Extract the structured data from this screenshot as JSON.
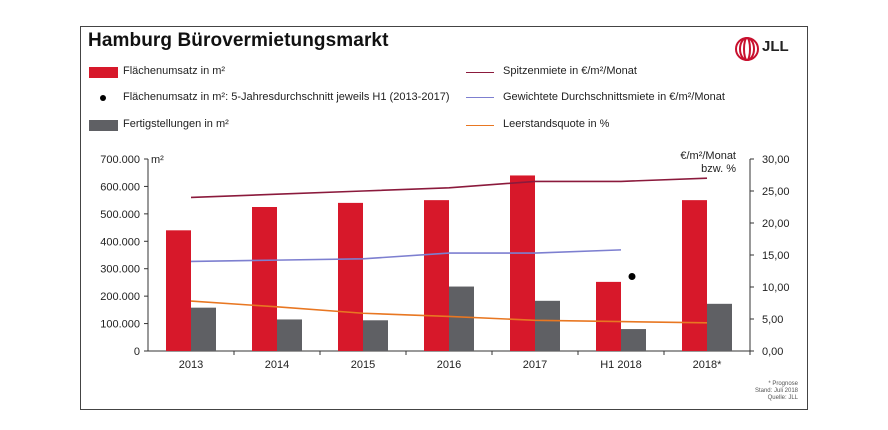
{
  "title": "Hamburg Bürovermietungsmarkt",
  "logo": {
    "text": "JLL",
    "color": "#c8102e"
  },
  "legend": {
    "bar_turnover": "Flächenumsatz in m²",
    "dot_avg": "Flächenumsatz in m²: 5-Jahresdurchschnitt jeweils H1 (2013-2017)",
    "bar_completions": "Fertigstellungen in m²",
    "line_prime": "Spitzenmiete in €/m²/Monat",
    "line_weighted": "Gewichtete Durchschnittsmiete in €/m²/Monat",
    "line_vacancy": "Leerstandsquote in %"
  },
  "axis": {
    "left_unit": "m²",
    "right_unit_line1": "€/m²/Monat",
    "right_unit_line2": "bzw. %"
  },
  "notes": {
    "line1": "* Prognose",
    "line2": "Stand: Juli 2018",
    "line3": "Quelle: JLL"
  },
  "chart_data": {
    "type": "bar",
    "categories": [
      "2013",
      "2014",
      "2015",
      "2016",
      "2017",
      "H1 2018",
      "2018*"
    ],
    "left_axis": {
      "min": 0,
      "max": 700000,
      "ticks": [
        "0",
        "100.000",
        "200.000",
        "300.000",
        "400.000",
        "500.000",
        "600.000",
        "700.000"
      ]
    },
    "right_axis": {
      "min": 0,
      "max": 30,
      "ticks": [
        "0,00",
        "5,00",
        "10,00",
        "15,00",
        "20,00",
        "25,00",
        "30,00"
      ]
    },
    "series": [
      {
        "name": "Flächenumsatz in m²",
        "type": "bar",
        "axis": "left",
        "color": "#d7182a",
        "values": [
          440000,
          525000,
          540000,
          550000,
          640000,
          252000,
          550000
        ]
      },
      {
        "name": "Fertigstellungen in m²",
        "type": "bar",
        "axis": "left",
        "color": "#5f6064",
        "values": [
          158000,
          115000,
          112000,
          235000,
          183000,
          80000,
          172000
        ]
      },
      {
        "name": "Flächenumsatz in m²: 5-Jahresdurchschnitt jeweils H1 (2013-2017)",
        "type": "point",
        "axis": "left",
        "color": "#000000",
        "category": "H1 2018",
        "value": 257000
      },
      {
        "name": "Spitzenmiete in €/m²/Monat",
        "type": "line",
        "axis": "right",
        "color": "#8b1a3c",
        "values": [
          24.0,
          24.5,
          25.0,
          25.5,
          26.5,
          26.5,
          27.0
        ]
      },
      {
        "name": "Gewichtete Durchschnittsmiete in €/m²/Monat",
        "type": "line",
        "axis": "right",
        "color": "#7d7fd0",
        "values": [
          14.0,
          14.2,
          14.4,
          15.3,
          15.3,
          15.8,
          null
        ]
      },
      {
        "name": "Leerstandsquote in %",
        "type": "line",
        "axis": "right",
        "color": "#e87722",
        "values": [
          7.8,
          6.9,
          5.9,
          5.4,
          4.8,
          4.6,
          4.4
        ]
      }
    ]
  }
}
